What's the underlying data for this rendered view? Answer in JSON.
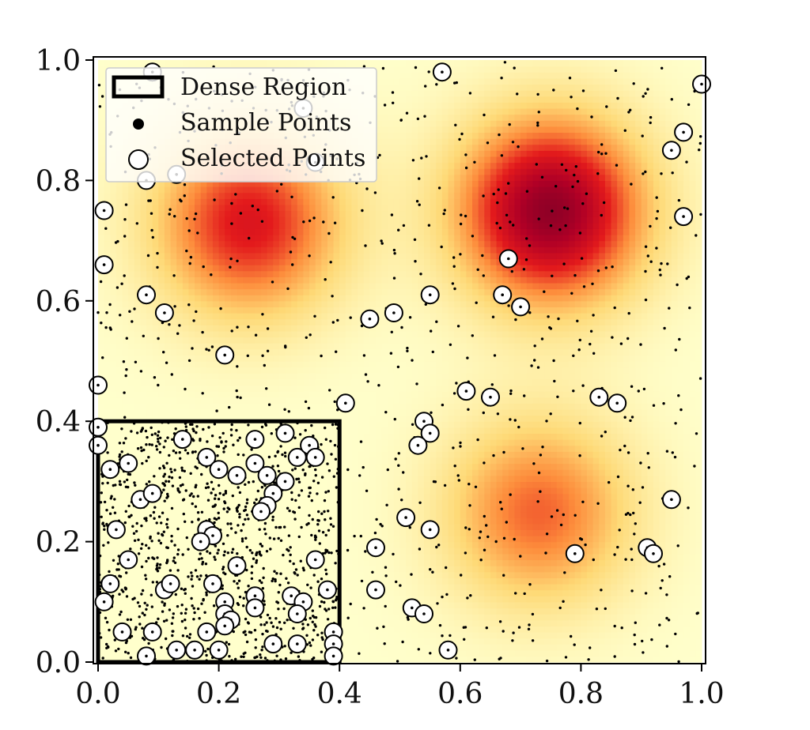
{
  "chart_data": {
    "type": "scatter",
    "title": "",
    "xlabel": "",
    "ylabel": "",
    "xlim": [
      0.0,
      1.0
    ],
    "ylim": [
      0.0,
      1.0
    ],
    "grid": false,
    "x_ticks": [
      "0.0",
      "0.2",
      "0.4",
      "0.6",
      "0.8",
      "1.0"
    ],
    "y_ticks": [
      "0.0",
      "0.2",
      "0.4",
      "0.6",
      "0.8",
      "1.0"
    ],
    "legend": {
      "placement": "top-left",
      "entries": [
        "Dense Region",
        "Sample Points",
        "Selected Points"
      ]
    },
    "background_density": {
      "colormap": "YlOrRd",
      "peaks": [
        {
          "x": 0.75,
          "y": 0.75,
          "relative_strength": 1.0
        },
        {
          "x": 0.25,
          "y": 0.73,
          "relative_strength": 0.72
        },
        {
          "x": 0.73,
          "y": 0.25,
          "relative_strength": 0.55
        }
      ]
    },
    "dense_region": {
      "x": [
        0.0,
        0.4
      ],
      "y": [
        0.0,
        0.4
      ]
    },
    "sample_points_description": "approximately 2000 uniformly scattered small black points, concentrated heavily inside the dense region",
    "selected_points": [
      [
        0.09,
        0.98
      ],
      [
        0.57,
        0.98
      ],
      [
        1.0,
        0.96
      ],
      [
        0.97,
        0.88
      ],
      [
        0.95,
        0.85
      ],
      [
        0.34,
        0.92
      ],
      [
        0.36,
        0.83
      ],
      [
        0.08,
        0.8
      ],
      [
        0.13,
        0.81
      ],
      [
        0.01,
        0.75
      ],
      [
        0.97,
        0.74
      ],
      [
        0.01,
        0.66
      ],
      [
        0.68,
        0.67
      ],
      [
        0.08,
        0.61
      ],
      [
        0.11,
        0.58
      ],
      [
        0.55,
        0.61
      ],
      [
        0.67,
        0.61
      ],
      [
        0.7,
        0.59
      ],
      [
        0.45,
        0.57
      ],
      [
        0.49,
        0.58
      ],
      [
        0.21,
        0.51
      ],
      [
        0.0,
        0.46
      ],
      [
        0.61,
        0.45
      ],
      [
        0.65,
        0.44
      ],
      [
        0.83,
        0.44
      ],
      [
        0.86,
        0.43
      ],
      [
        0.41,
        0.43
      ],
      [
        0.54,
        0.4
      ],
      [
        0.55,
        0.38
      ],
      [
        0.53,
        0.36
      ],
      [
        0.0,
        0.39
      ],
      [
        0.0,
        0.36
      ],
      [
        0.14,
        0.37
      ],
      [
        0.02,
        0.32
      ],
      [
        0.05,
        0.33
      ],
      [
        0.18,
        0.34
      ],
      [
        0.2,
        0.32
      ],
      [
        0.23,
        0.31
      ],
      [
        0.26,
        0.33
      ],
      [
        0.26,
        0.37
      ],
      [
        0.28,
        0.31
      ],
      [
        0.31,
        0.38
      ],
      [
        0.33,
        0.34
      ],
      [
        0.35,
        0.36
      ],
      [
        0.36,
        0.34
      ],
      [
        0.31,
        0.3
      ],
      [
        0.29,
        0.28
      ],
      [
        0.07,
        0.27
      ],
      [
        0.09,
        0.28
      ],
      [
        0.28,
        0.26
      ],
      [
        0.27,
        0.25
      ],
      [
        0.03,
        0.22
      ],
      [
        0.18,
        0.22
      ],
      [
        0.19,
        0.21
      ],
      [
        0.17,
        0.2
      ],
      [
        0.05,
        0.17
      ],
      [
        0.36,
        0.17
      ],
      [
        0.23,
        0.16
      ],
      [
        0.02,
        0.13
      ],
      [
        0.11,
        0.12
      ],
      [
        0.12,
        0.13
      ],
      [
        0.19,
        0.13
      ],
      [
        0.38,
        0.12
      ],
      [
        0.26,
        0.11
      ],
      [
        0.21,
        0.1
      ],
      [
        0.32,
        0.11
      ],
      [
        0.34,
        0.1
      ],
      [
        0.21,
        0.08
      ],
      [
        0.26,
        0.09
      ],
      [
        0.33,
        0.08
      ],
      [
        0.01,
        0.1
      ],
      [
        0.22,
        0.07
      ],
      [
        0.04,
        0.05
      ],
      [
        0.09,
        0.05
      ],
      [
        0.18,
        0.05
      ],
      [
        0.21,
        0.06
      ],
      [
        0.39,
        0.05
      ],
      [
        0.39,
        0.03
      ],
      [
        0.29,
        0.03
      ],
      [
        0.33,
        0.03
      ],
      [
        0.13,
        0.02
      ],
      [
        0.16,
        0.02
      ],
      [
        0.2,
        0.02
      ],
      [
        0.08,
        0.01
      ],
      [
        0.39,
        0.01
      ],
      [
        0.46,
        0.19
      ],
      [
        0.51,
        0.24
      ],
      [
        0.55,
        0.22
      ],
      [
        0.46,
        0.12
      ],
      [
        0.52,
        0.09
      ],
      [
        0.54,
        0.08
      ],
      [
        0.58,
        0.02
      ],
      [
        0.79,
        0.18
      ],
      [
        0.91,
        0.19
      ],
      [
        0.92,
        0.18
      ],
      [
        0.95,
        0.27
      ]
    ]
  }
}
